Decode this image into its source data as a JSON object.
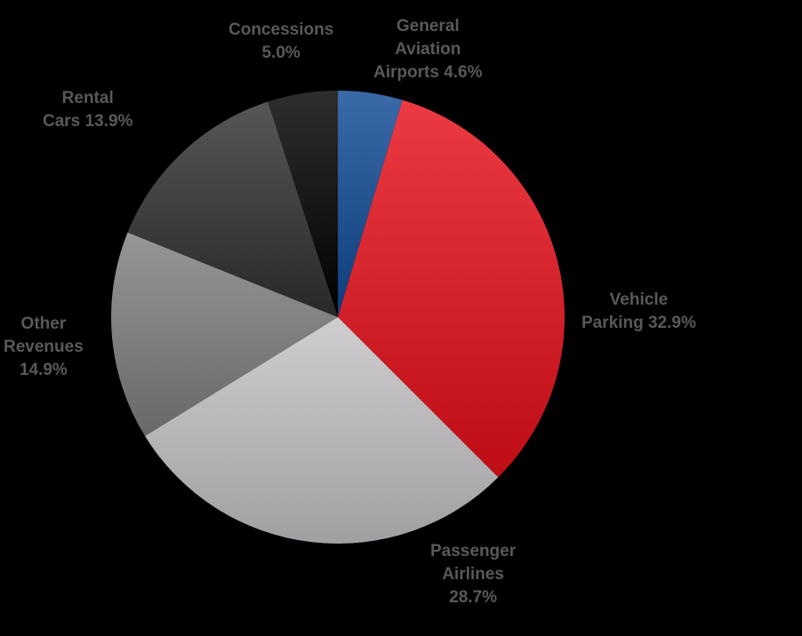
{
  "chart_data": {
    "type": "pie",
    "slices": [
      {
        "name": "General Aviation Airports",
        "value": 4.6,
        "color": "#1f4e8c",
        "label_lines": [
          "General",
          "Aviation",
          "Airports 4.6%"
        ]
      },
      {
        "name": "Vehicle Parking",
        "value": 32.9,
        "color": "#d01e27",
        "label_lines": [
          "Vehicle",
          "Parking 32.9%"
        ]
      },
      {
        "name": "Passenger Airlines",
        "value": 28.7,
        "color": "#b3b1b4",
        "label_lines": [
          "Passenger",
          "Airlines",
          "28.7%"
        ]
      },
      {
        "name": "Other Revenues",
        "value": 14.9,
        "color": "#7a7a7a",
        "label_lines": [
          "Other",
          "Revenues",
          "14.9%"
        ]
      },
      {
        "name": "Rental Cars",
        "value": 13.9,
        "color": "#3a3a3a",
        "label_lines": [
          "Rental",
          "Cars 13.9%"
        ]
      },
      {
        "name": "Concessions",
        "value": 5.0,
        "color": "#121212",
        "label_lines": [
          "Concessions",
          "5.0%"
        ]
      }
    ],
    "start_angle_deg": 0,
    "direction": "clockwise"
  }
}
